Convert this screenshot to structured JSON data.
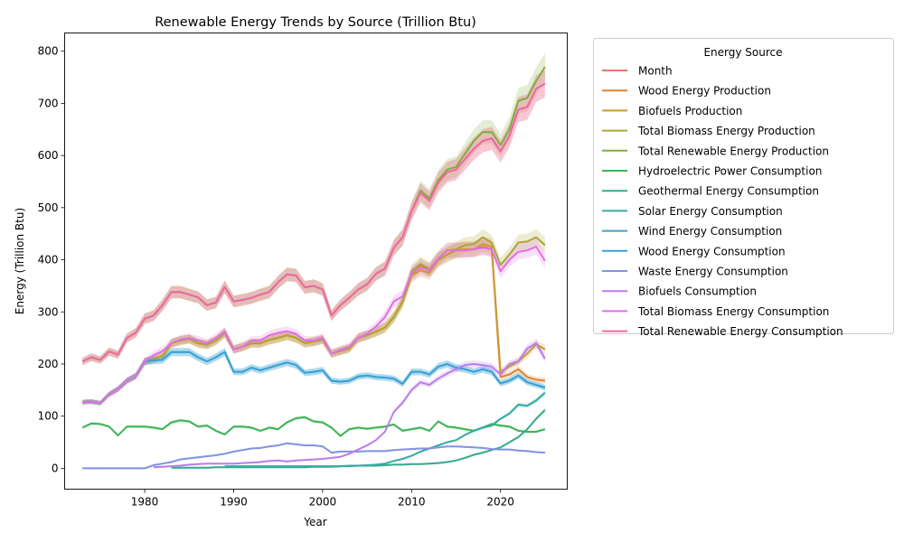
{
  "chart_data": {
    "type": "line",
    "title": "Renewable Energy Trends by Source (Trillion Btu)",
    "xlabel": "Year",
    "ylabel": "Energy (Trillion Btu)",
    "xlim": [
      1971,
      2027.5
    ],
    "ylim": [
      -40,
      835
    ],
    "x_ticks": [
      1980,
      1990,
      2000,
      2010,
      2020
    ],
    "y_ticks": [
      0,
      100,
      200,
      300,
      400,
      500,
      600,
      700,
      800
    ],
    "legend": {
      "title": "Energy Source",
      "position": "outside-right"
    },
    "confidence_bands": true,
    "x": [
      1973,
      1974,
      1975,
      1976,
      1977,
      1978,
      1979,
      1980,
      1981,
      1982,
      1983,
      1984,
      1985,
      1986,
      1987,
      1988,
      1989,
      1990,
      1991,
      1992,
      1993,
      1994,
      1995,
      1996,
      1997,
      1998,
      1999,
      2000,
      2001,
      2002,
      2003,
      2004,
      2005,
      2006,
      2007,
      2008,
      2009,
      2010,
      2011,
      2012,
      2013,
      2014,
      2015,
      2016,
      2017,
      2018,
      2019,
      2020,
      2021,
      2022,
      2023,
      2024,
      2025
    ],
    "series": [
      {
        "name": "Month",
        "color": "#f0716c",
        "values": [
          205,
          213,
          208,
          224,
          218,
          250,
          260,
          287,
          293,
          313,
          338,
          338,
          333,
          328,
          313,
          318,
          348,
          320,
          323,
          327,
          333,
          338,
          357,
          372,
          370,
          347,
          350,
          343,
          293,
          313,
          327,
          343,
          353,
          373,
          383,
          423,
          443,
          493,
          528,
          513,
          548,
          568,
          573,
          593,
          613,
          628,
          633,
          608,
          638,
          688,
          693,
          728,
          738
        ]
      },
      {
        "name": "Wood Energy Production",
        "color": "#e1822f",
        "values": [
          127,
          128,
          125,
          142,
          152,
          168,
          177,
          205,
          210,
          215,
          240,
          245,
          248,
          240,
          237,
          245,
          260,
          228,
          233,
          240,
          240,
          246,
          250,
          255,
          250,
          240,
          243,
          247,
          220,
          225,
          230,
          250,
          255,
          262,
          270,
          290,
          320,
          370,
          390,
          380,
          400,
          410,
          418,
          420,
          420,
          425,
          420,
          175,
          180,
          190,
          175,
          170,
          168
        ]
      },
      {
        "name": "Biofuels Production",
        "color": "#cc9834",
        "values": [
          127,
          128,
          125,
          142,
          152,
          168,
          177,
          205,
          210,
          215,
          240,
          245,
          248,
          240,
          237,
          245,
          260,
          228,
          233,
          240,
          240,
          246,
          250,
          255,
          250,
          240,
          243,
          247,
          220,
          225,
          230,
          250,
          255,
          262,
          270,
          290,
          320,
          370,
          380,
          375,
          400,
          410,
          418,
          420,
          420,
          430,
          425,
          185,
          195,
          205,
          220,
          238,
          228
        ]
      },
      {
        "name": "Total Biomass Energy Production",
        "color": "#aaa638",
        "values": [
          127,
          128,
          125,
          142,
          152,
          168,
          177,
          205,
          210,
          215,
          240,
          245,
          248,
          240,
          237,
          245,
          260,
          228,
          233,
          240,
          240,
          246,
          250,
          255,
          250,
          240,
          243,
          247,
          220,
          225,
          230,
          250,
          255,
          262,
          270,
          290,
          320,
          378,
          392,
          382,
          402,
          418,
          420,
          428,
          430,
          443,
          433,
          390,
          410,
          433,
          435,
          443,
          428
        ]
      },
      {
        "name": "Total Renewable Energy Production",
        "color": "#7fae3c",
        "values": [
          205,
          213,
          208,
          224,
          218,
          250,
          260,
          287,
          293,
          313,
          338,
          338,
          333,
          328,
          313,
          318,
          348,
          320,
          323,
          327,
          333,
          338,
          357,
          372,
          370,
          347,
          350,
          343,
          293,
          313,
          327,
          343,
          353,
          373,
          383,
          423,
          443,
          493,
          533,
          518,
          553,
          573,
          578,
          603,
          628,
          645,
          645,
          620,
          650,
          705,
          710,
          743,
          770
        ]
      },
      {
        "name": "Hydroelectric Power Consumption",
        "color": "#40b456",
        "values": [
          78,
          86,
          85,
          80,
          63,
          80,
          80,
          80,
          78,
          75,
          88,
          92,
          90,
          80,
          82,
          72,
          65,
          80,
          80,
          78,
          72,
          78,
          75,
          88,
          96,
          98,
          90,
          88,
          78,
          62,
          75,
          78,
          76,
          78,
          80,
          84,
          72,
          75,
          78,
          72,
          90,
          80,
          78,
          75,
          72,
          78,
          85,
          82,
          80,
          72,
          70,
          70,
          75
        ]
      },
      {
        "name": "Geothermal Energy Consumption",
        "color": "#35ab8c",
        "values": [
          null,
          null,
          null,
          null,
          null,
          null,
          null,
          null,
          null,
          null,
          1,
          1,
          1,
          1,
          1,
          2,
          2,
          2,
          2,
          2,
          2,
          2,
          2,
          2,
          2,
          2,
          3,
          3,
          3,
          4,
          4,
          5,
          5,
          5,
          6,
          7,
          7,
          8,
          8,
          9,
          10,
          12,
          15,
          20,
          26,
          30,
          35,
          40,
          50,
          60,
          75,
          95,
          112
        ]
      },
      {
        "name": "Solar Energy Consumption",
        "color": "#38aba5",
        "values": [
          null,
          null,
          null,
          null,
          null,
          null,
          null,
          null,
          null,
          null,
          null,
          null,
          null,
          null,
          null,
          null,
          4,
          4,
          4,
          4,
          4,
          4,
          4,
          4,
          4,
          4,
          4,
          4,
          4,
          4,
          5,
          5,
          6,
          7,
          9,
          14,
          18,
          24,
          32,
          38,
          44,
          50,
          54,
          64,
          72,
          78,
          82,
          95,
          105,
          122,
          120,
          130,
          145
        ]
      },
      {
        "name": "Wind Energy Consumption",
        "color": "#37a8bd",
        "values": [
          127,
          128,
          125,
          142,
          152,
          168,
          177,
          205,
          207,
          208,
          223,
          223,
          223,
          213,
          205,
          213,
          223,
          185,
          185,
          193,
          188,
          193,
          198,
          203,
          198,
          183,
          185,
          188,
          168,
          166,
          168,
          176,
          178,
          175,
          174,
          172,
          162,
          185,
          185,
          180,
          195,
          200,
          193,
          190,
          185,
          190,
          185,
          163,
          168,
          178,
          165,
          160,
          155
        ]
      },
      {
        "name": "Wood Energy Consumption",
        "color": "#3aa0da",
        "values": [
          127,
          128,
          125,
          142,
          152,
          168,
          177,
          205,
          207,
          208,
          223,
          223,
          223,
          213,
          205,
          213,
          223,
          185,
          185,
          193,
          188,
          193,
          198,
          203,
          198,
          183,
          185,
          188,
          168,
          166,
          168,
          176,
          178,
          175,
          174,
          172,
          162,
          185,
          185,
          180,
          195,
          200,
          193,
          190,
          185,
          190,
          185,
          163,
          168,
          178,
          165,
          160,
          155
        ]
      },
      {
        "name": "Waste Energy Consumption",
        "color": "#8493e2",
        "values": [
          0,
          0,
          0,
          0,
          0,
          0,
          0,
          0,
          6,
          9,
          12,
          17,
          19,
          21,
          23,
          25,
          28,
          32,
          35,
          38,
          39,
          42,
          44,
          48,
          46,
          44,
          44,
          42,
          30,
          32,
          32,
          32,
          33,
          33,
          33,
          35,
          36,
          37,
          38,
          38,
          40,
          42,
          42,
          41,
          40,
          39,
          37,
          36,
          36,
          34,
          33,
          31,
          30
        ]
      },
      {
        "name": "Biofuels Consumption",
        "color": "#b87fec",
        "values": [
          null,
          null,
          null,
          null,
          null,
          null,
          null,
          null,
          2,
          3,
          4,
          5,
          7,
          8,
          9,
          9,
          9,
          9,
          10,
          11,
          12,
          14,
          15,
          13,
          15,
          16,
          17,
          18,
          20,
          22,
          28,
          36,
          44,
          54,
          70,
          108,
          126,
          150,
          165,
          160,
          172,
          182,
          190,
          198,
          200,
          198,
          195,
          180,
          200,
          205,
          230,
          240,
          210
        ]
      },
      {
        "name": "Total Biomass Energy Consumption",
        "color": "#e36ee6",
        "values": [
          127,
          128,
          125,
          142,
          152,
          168,
          177,
          205,
          217,
          225,
          240,
          247,
          250,
          245,
          240,
          250,
          262,
          228,
          233,
          245,
          245,
          255,
          260,
          263,
          258,
          245,
          245,
          250,
          220,
          227,
          233,
          250,
          258,
          272,
          290,
          320,
          330,
          375,
          385,
          380,
          403,
          418,
          418,
          418,
          420,
          423,
          420,
          378,
          400,
          415,
          418,
          425,
          398
        ]
      },
      {
        "name": "Total Renewable Energy Consumption",
        "color": "#f267a8",
        "values": [
          205,
          213,
          208,
          224,
          218,
          250,
          260,
          287,
          293,
          313,
          338,
          338,
          333,
          328,
          313,
          318,
          348,
          320,
          323,
          327,
          333,
          338,
          357,
          372,
          370,
          347,
          350,
          343,
          293,
          313,
          327,
          343,
          353,
          373,
          383,
          423,
          443,
          493,
          528,
          513,
          548,
          568,
          573,
          593,
          613,
          628,
          633,
          608,
          638,
          688,
          693,
          728,
          738
        ]
      }
    ]
  }
}
